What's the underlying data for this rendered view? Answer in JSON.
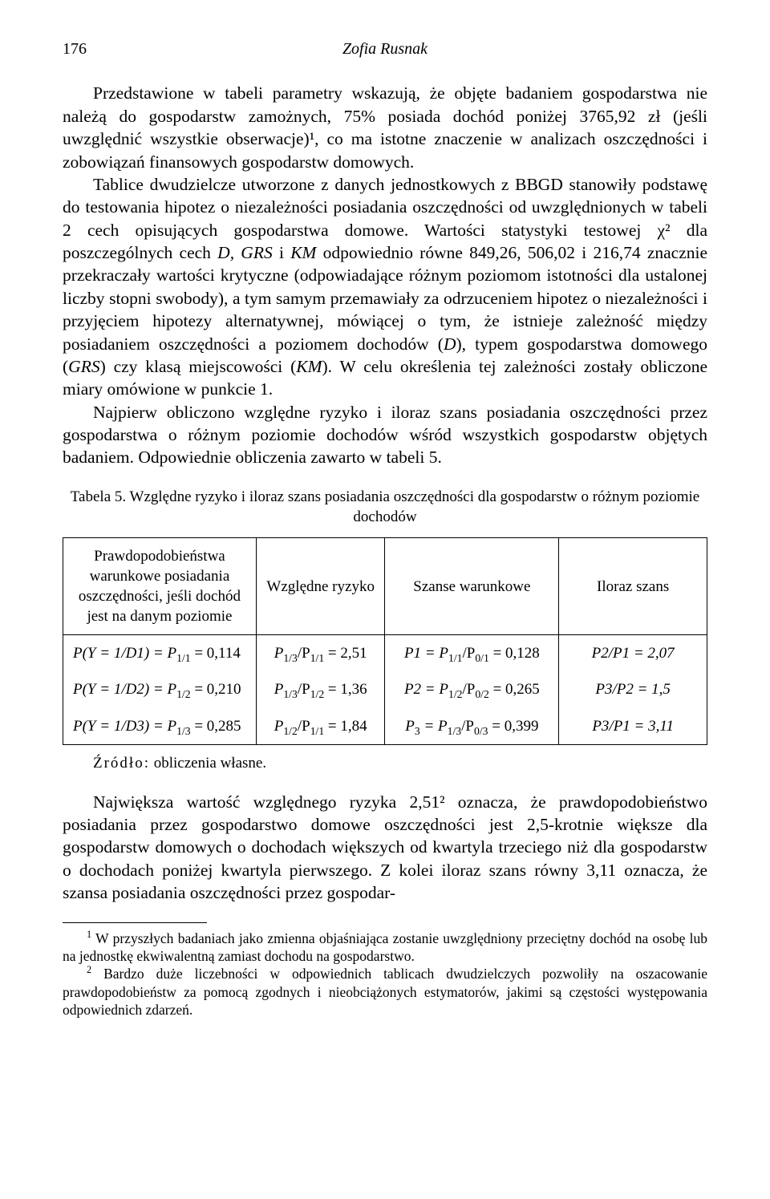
{
  "header": {
    "page_number": "176",
    "author": "Zofia Rusnak"
  },
  "paragraphs": {
    "p1": "Przedstawione w tabeli parametry wskazują, że objęte badaniem gospodarstwa nie należą do gospodarstw zamożnych, 75% posiada dochód poniżej 3765,92 zł (jeśli uwzględnić wszystkie obserwacje)¹, co ma istotne znaczenie w analizach oszczędności i zobowiązań finansowych gospodarstw domowych.",
    "p2_a": "Tablice dwudzielcze utworzone z danych jednostkowych z BBGD stanowiły podstawę do testowania hipotez o niezależności posiadania oszczędności od uwzględnionych w tabeli 2 cech opisujących gospodarstwa domowe. Wartości statystyki testowej χ² dla poszczególnych cech ",
    "p2_b_ital": "D, GRS",
    "p2_c": " i ",
    "p2_d_ital": "KM",
    "p2_e": " odpowiednio równe 849,26, 506,02 i 216,74 znacznie przekraczały wartości krytyczne (odpowiadające różnym poziomom istotności dla ustalonej liczby stopni swobody), a tym samym przemawiały za odrzuceniem hipotez o niezależności i przyjęciem hipotezy alternatywnej, mówiącej o tym, że istnieje zależność między posiadaniem oszczędności a poziomem dochodów (",
    "p2_f_ital": "D",
    "p2_g": "), typem gospodarstwa domowego (",
    "p2_h_ital": "GRS",
    "p2_i": ") czy klasą miejscowości (",
    "p2_j_ital": "KM",
    "p2_k": "). W celu określenia tej zależności zostały obliczone miary omówione w punkcie 1.",
    "p3": "Najpierw obliczono względne ryzyko i iloraz szans posiadania oszczędności przez gospodarstwa o różnym poziomie dochodów wśród wszystkich gospodarstw objętych badaniem. Odpowiednie obliczenia zawarto w tabeli 5.",
    "p4": "Największa wartość względnego ryzyka 2,51² oznacza, że prawdopodobieństwo posiadania przez gospodarstwo domowe oszczędności jest 2,5-krotnie większe dla gospodarstw domowych o dochodach większych od kwartyla trzeciego niż dla gospodarstw o dochodach poniżej kwartyla pierwszego. Z kolei iloraz szans równy 3,11 oznacza, że szansa posiadania oszczędności przez gospodar-"
  },
  "table5": {
    "caption": "Tabela 5. Względne ryzyko i iloraz szans posiadania oszczędności dla gospodarstw o różnym poziomie dochodów",
    "headers": {
      "h1": "Prawdopodobieństwa warunkowe posiadania oszczędności, jeśli dochód jest na danym poziomie",
      "h2": "Względne ryzyko",
      "h3": "Szanse warunkowe",
      "h4": "Iloraz szans"
    },
    "rows": [
      {
        "prob_lhs": "P(Y = 1/D1) = P",
        "prob_sub": "1/1",
        "prob_val": " = 0,114",
        "rr_lhs": "P",
        "rr_sub1": "1/3",
        "rr_mid": "/P",
        "rr_sub2": "1/1",
        "rr_val": " = 2,51",
        "cond_lhs": "P1 = P",
        "cond_sub1": "1/1",
        "cond_mid": "/P",
        "cond_sub2": "0/1",
        "cond_val": " = 0,128",
        "or": "P2/P1 = 2,07"
      },
      {
        "prob_lhs": "P(Y = 1/D2) = P",
        "prob_sub": "1/2",
        "prob_val": " = 0,210",
        "rr_lhs": "P",
        "rr_sub1": "1/3",
        "rr_mid": "/P",
        "rr_sub2": "1/2",
        "rr_val": " = 1,36",
        "cond_lhs": "P2 = P",
        "cond_sub1": "1/2",
        "cond_mid": "/P",
        "cond_sub2": "0/2",
        "cond_val": " = 0,265",
        "or": "P3/P2 = 1,5"
      },
      {
        "prob_lhs": "P(Y = 1/D3) = P",
        "prob_sub": "1/3",
        "prob_val": " = 0,285",
        "rr_lhs": "P",
        "rr_sub1": "1/2",
        "rr_mid": "/P",
        "rr_sub2": "1/1",
        "rr_val": " = 1,84",
        "cond_lhs": "P",
        "cond_presub": "3",
        "cond_lhs2": " = P",
        "cond_sub1": "1/3",
        "cond_mid": "/P",
        "cond_sub2": "0/3",
        "cond_val": " = 0,399",
        "or": "P3/P1 = 3,11"
      }
    ],
    "source_label": "Źródło:",
    "source_text": " obliczenia własne."
  },
  "footnotes": {
    "f1": "W przyszłych badaniach jako zmienna objaśniająca zostanie uwzględniony przeciętny dochód na osobę lub na jednostkę ekwiwalentną zamiast dochodu na gospodarstwo.",
    "f2": "Bardzo duże liczebności w odpowiednich tablicach dwudzielczych pozwoliły na oszacowanie prawdopodobieństw za pomocą zgodnych i nieobciążonych estymatorów, jakimi są częstości występowania odpowiednich zdarzeń."
  }
}
